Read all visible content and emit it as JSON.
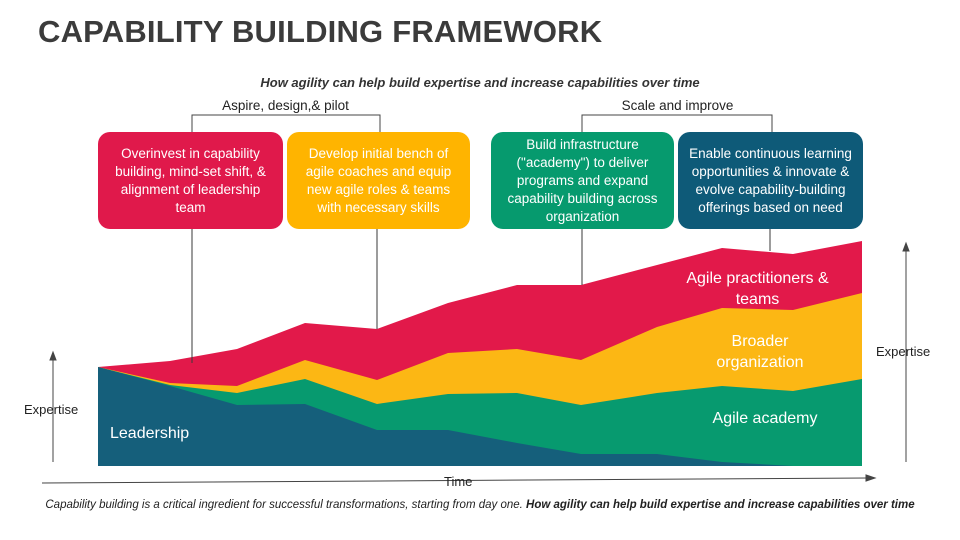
{
  "title": "CAPABILITY BUILDING FRAMEWORK",
  "subtitle": "How agility can help build expertise and increase capabilities over time",
  "phases": {
    "aspire": "Aspire, design,& pilot",
    "scale": "Scale and improve"
  },
  "cards": [
    {
      "text": "Overinvest in capability building, mind-set shift, & alignment of leadership team",
      "color": "#e0194b"
    },
    {
      "text": "Develop initial bench of agile coaches and equip new agile roles & teams with necessary skills",
      "color": "#ffb400"
    },
    {
      "text": "Build infrastructure (\"academy\") to deliver programs and expand capability building across organization",
      "color": "#069a6e"
    },
    {
      "text": "Enable continuous learning opportunities & innovate & evolve capability-building offerings based on need",
      "color": "#0e5a78"
    }
  ],
  "areas": {
    "leadership": "Leadership",
    "agile_academy": "Agile academy",
    "broader_org": "Broader organization",
    "practitioners": "Agile practitioners & teams"
  },
  "colors": {
    "leadership": "#155f7b",
    "agile_academy": "#079a6f",
    "broader_org": "#fcb714",
    "practitioners": "#e2194a"
  },
  "axes": {
    "left_y": "Expertise",
    "right_y": "Expertise",
    "x": "Time"
  },
  "footer": {
    "normal": "Capability building is a critical ingredient for successful transformations, starting from day one. ",
    "bold": "How agility can help build expertise and increase capabilities over time"
  }
}
